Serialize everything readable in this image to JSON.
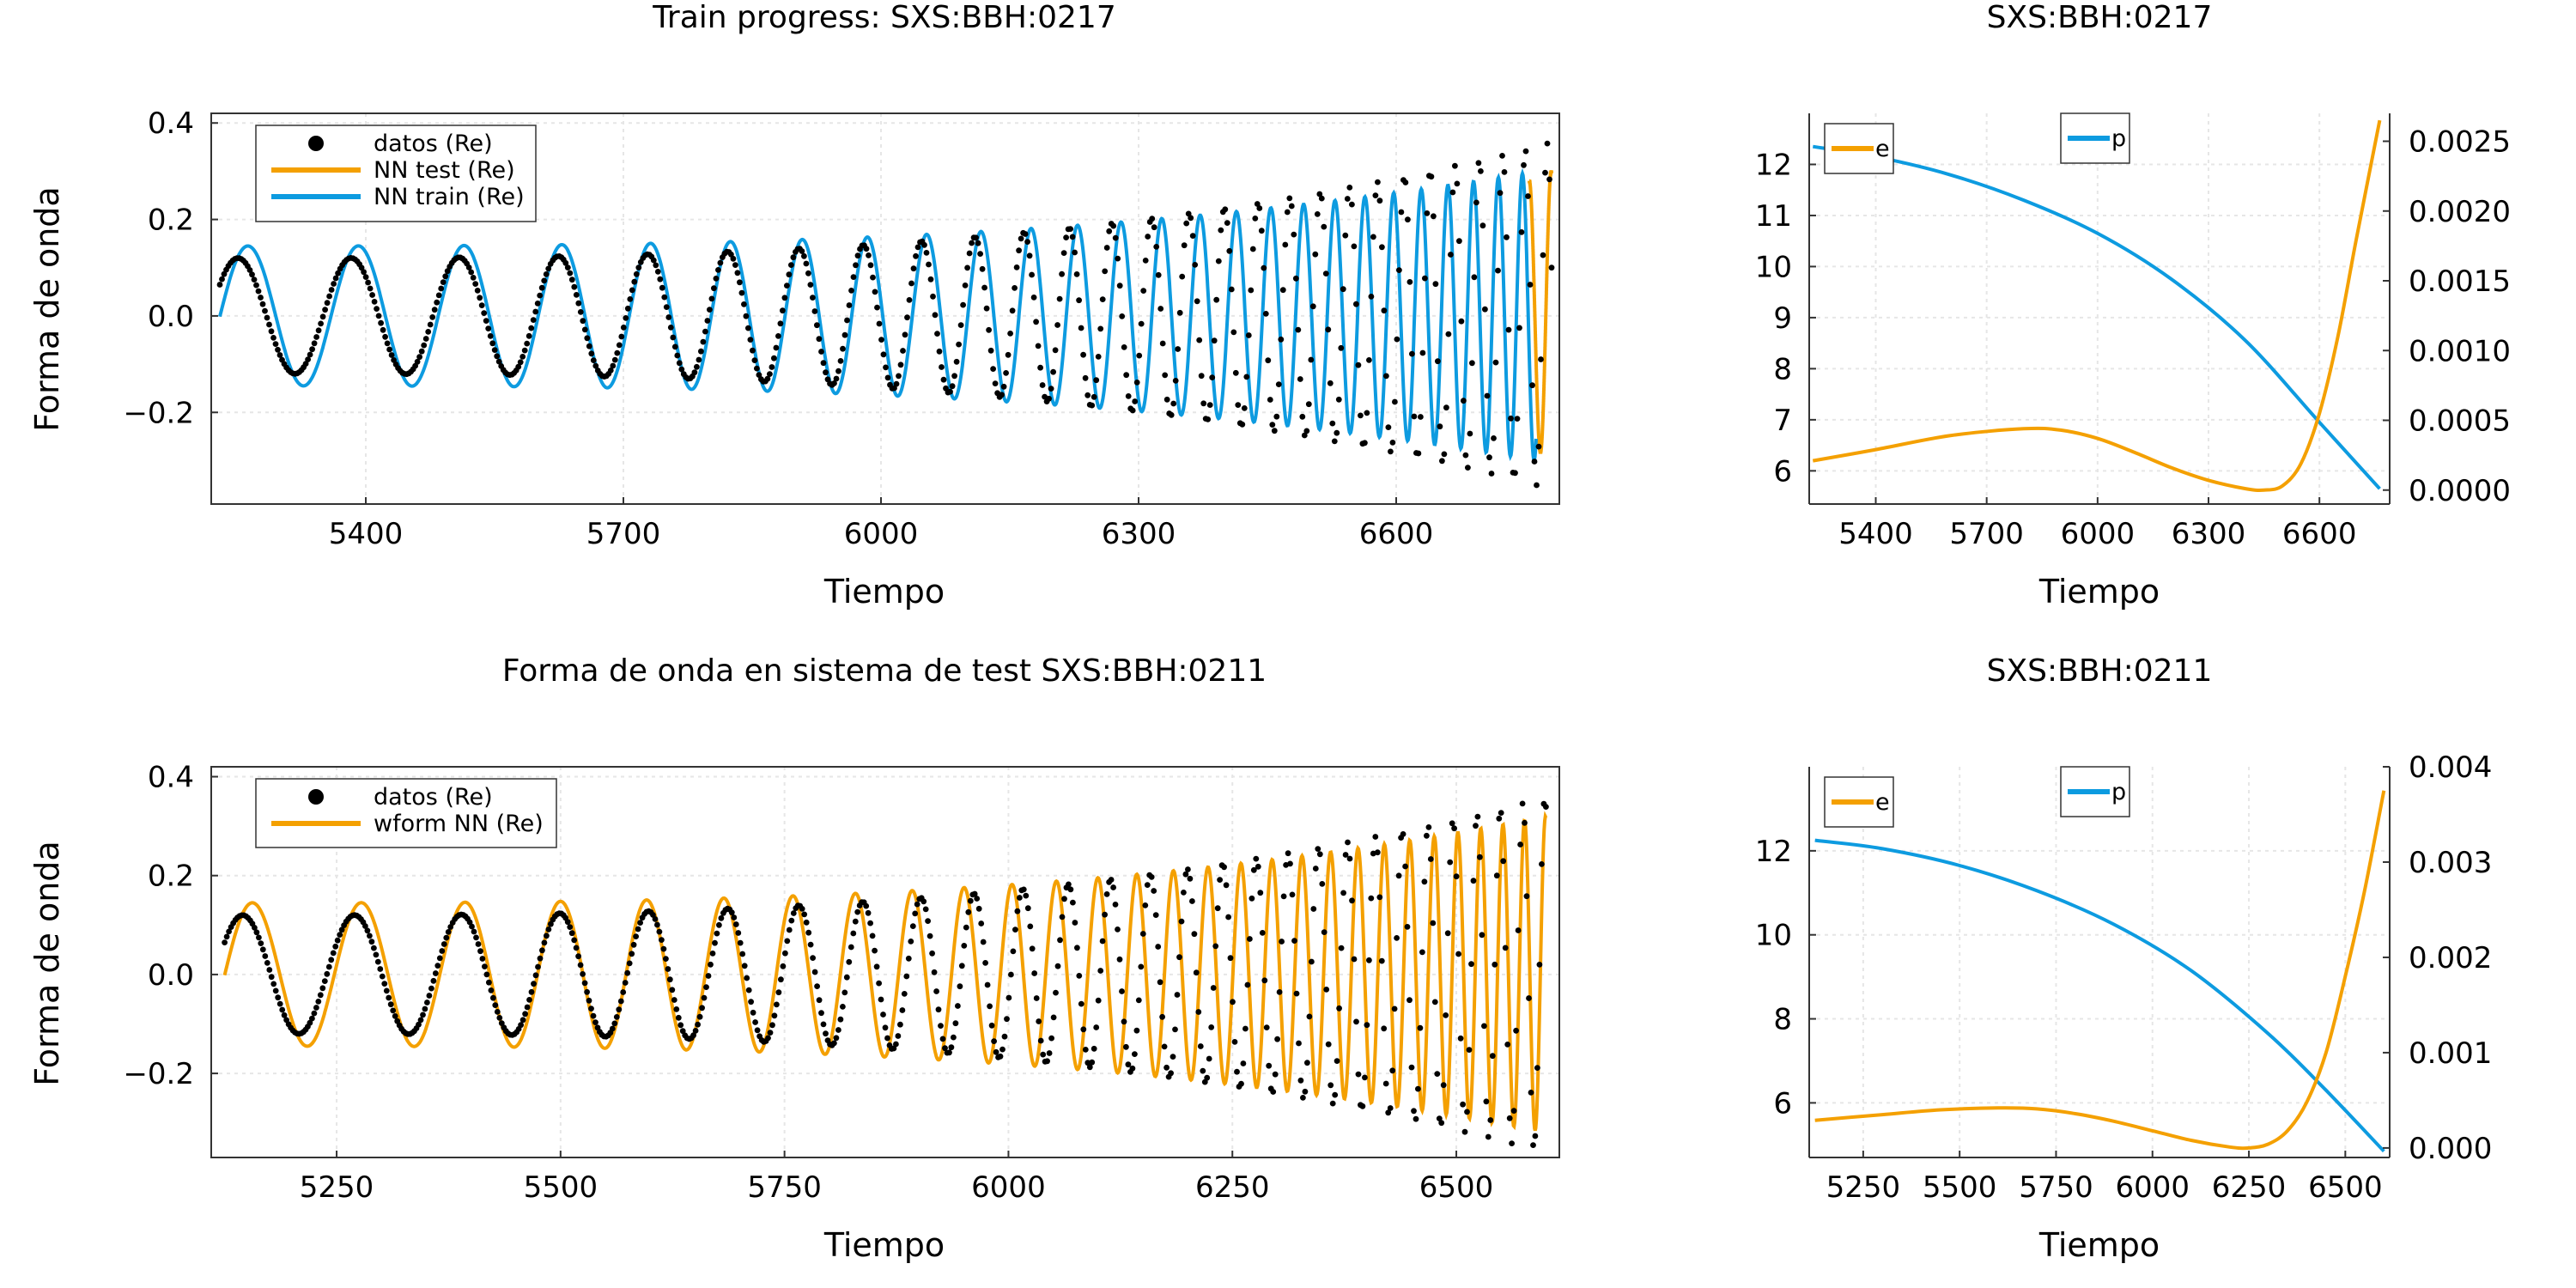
{
  "colors": {
    "black": "#000000",
    "orange": "#f4a000",
    "blue": "#0d9be0"
  },
  "chart_data": [
    {
      "type": "line",
      "title": "Train progress: SXS:BBH:0217",
      "xlabel": "Tiempo",
      "ylabel": "Forma de onda",
      "xlim": [
        5220,
        6790
      ],
      "ylim": [
        -0.39,
        0.42
      ],
      "xticks": [
        5400,
        5700,
        6000,
        6300,
        6600
      ],
      "yticks": [
        -0.2,
        0.0,
        0.2,
        0.4
      ],
      "ytick_labels": [
        "−0.2",
        "0.0",
        "0.2",
        "0.4"
      ],
      "grid": true,
      "legend_position": "top-left",
      "series": [
        {
          "name": "datos (Re)",
          "style": "dots",
          "color": "#000000",
          "waveform": {
            "t_start": 5230,
            "t_merge": 6781,
            "amp_start": 0.12,
            "amp_end": 0.36,
            "phase0": -1.0,
            "period_start": 133,
            "period_end": 25
          }
        },
        {
          "name": "NN test (Re)",
          "style": "line",
          "color": "#f4a000",
          "waveform": {
            "t_start": 6755,
            "t_end": 6781,
            "amp_start": 0.28,
            "amp_end": 0.3,
            "period_start": 26,
            "period_end": 24
          }
        },
        {
          "name": "NN train (Re)",
          "style": "line",
          "color": "#0d9be0",
          "waveform": {
            "t_start": 5230,
            "t_end": 6763,
            "amp_start": 0.145,
            "amp_end": 0.3,
            "phase0": -1.58,
            "period_start": 130,
            "period_end": 27
          }
        }
      ]
    },
    {
      "type": "line",
      "title": "SXS:BBH:0217",
      "xlabel": "Tiempo",
      "xlim": [
        5220,
        6790
      ],
      "xticks": [
        5400,
        5700,
        6000,
        6300,
        6600
      ],
      "ylim_left": [
        5.35,
        13.0
      ],
      "yticks_left": [
        6,
        7,
        8,
        9,
        10,
        11,
        12
      ],
      "ylim_right": [
        -0.0001,
        0.0027
      ],
      "yticks_right": [
        0.0,
        0.0005,
        0.001,
        0.0015,
        0.002,
        0.0025
      ],
      "ytick_labels_right": [
        "0.0000",
        "0.0005",
        "0.0010",
        "0.0015",
        "0.0020",
        "0.0025"
      ],
      "grid": true,
      "series": [
        {
          "name": "p",
          "axis": "left",
          "color": "#0d9be0",
          "x": [
            5230,
            5400,
            5600,
            5800,
            6000,
            6200,
            6400,
            6600,
            6763
          ],
          "y": [
            12.35,
            12.15,
            11.8,
            11.3,
            10.65,
            9.75,
            8.55,
            6.95,
            5.65
          ]
        },
        {
          "name": "e",
          "axis": "right",
          "color": "#f4a000",
          "x": [
            5230,
            5400,
            5600,
            5800,
            5900,
            6000,
            6100,
            6200,
            6300,
            6400,
            6450,
            6500,
            6550,
            6600,
            6650,
            6700,
            6763
          ],
          "y": [
            0.00021,
            0.00029,
            0.00039,
            0.00044,
            0.00043,
            0.00037,
            0.00027,
            0.00016,
            7e-05,
            1e-05,
            0.0,
            3e-05,
            0.00019,
            0.00055,
            0.0011,
            0.0018,
            0.00265
          ]
        }
      ]
    },
    {
      "type": "line",
      "title": "Forma de onda en sistema de test SXS:BBH:0211",
      "xlabel": "Tiempo",
      "ylabel": "Forma de onda",
      "xlim": [
        5110,
        6615
      ],
      "ylim": [
        -0.37,
        0.42
      ],
      "xticks": [
        5250,
        5500,
        5750,
        6000,
        6250,
        6500
      ],
      "yticks": [
        -0.2,
        0.0,
        0.2,
        0.4
      ],
      "ytick_labels": [
        "−0.2",
        "0.0",
        "0.2",
        "0.4"
      ],
      "grid": true,
      "legend_position": "top-left",
      "series": [
        {
          "name": "datos (Re)",
          "style": "dots",
          "color": "#000000",
          "waveform": {
            "t_start": 5125,
            "t_merge": 6600,
            "amp_start": 0.12,
            "amp_end": 0.36,
            "phase0": -1.0,
            "period_start": 126,
            "period_end": 24
          }
        },
        {
          "name": "wform NN (Re)",
          "style": "line",
          "color": "#f4a000",
          "waveform": {
            "t_start": 5125,
            "t_end": 6600,
            "amp_start": 0.145,
            "amp_end": 0.32,
            "phase0": -1.58,
            "period_start": 123,
            "period_end": 23
          }
        }
      ]
    },
    {
      "type": "line",
      "title": "SXS:BBH:0211",
      "xlabel": "Tiempo",
      "xlim": [
        5110,
        6615
      ],
      "xticks": [
        5250,
        5500,
        5750,
        6000,
        6250,
        6500
      ],
      "ylim_left": [
        4.7,
        14.0
      ],
      "yticks_left": [
        6,
        8,
        10,
        12
      ],
      "ylim_right": [
        -0.0001,
        0.004
      ],
      "yticks_right": [
        0.0,
        0.001,
        0.002,
        0.003,
        0.004
      ],
      "ytick_labels_right": [
        "0.000",
        "0.001",
        "0.002",
        "0.003",
        "0.004"
      ],
      "grid": true,
      "series": [
        {
          "name": "p",
          "axis": "left",
          "color": "#0d9be0",
          "x": [
            5125,
            5300,
            5500,
            5700,
            5900,
            6100,
            6300,
            6450,
            6600
          ],
          "y": [
            12.25,
            12.05,
            11.65,
            11.05,
            10.25,
            9.15,
            7.65,
            6.3,
            4.85
          ]
        },
        {
          "name": "e",
          "axis": "right",
          "color": "#f4a000",
          "x": [
            5125,
            5300,
            5450,
            5600,
            5700,
            5800,
            5900,
            6000,
            6100,
            6200,
            6250,
            6300,
            6350,
            6400,
            6450,
            6500,
            6550,
            6600
          ],
          "y": [
            0.00029,
            0.00035,
            0.0004,
            0.00042,
            0.00041,
            0.00036,
            0.00028,
            0.00018,
            8e-05,
            1e-05,
            0.0,
            4e-05,
            0.00018,
            0.00048,
            0.001,
            0.0018,
            0.0027,
            0.00375
          ]
        }
      ]
    }
  ]
}
